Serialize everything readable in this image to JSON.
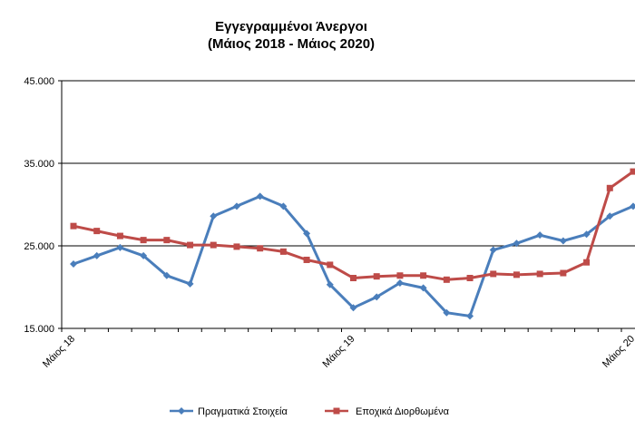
{
  "chart_data": {
    "type": "line",
    "title": "Εγγεγραμμένοι Άνεργοι",
    "subtitle": "(Μάιος 2018 - Μάιος 2020)",
    "xlabel": "",
    "ylabel": "",
    "ylim": [
      15000,
      45000
    ],
    "yticks": [
      "15.000",
      "25.000",
      "35.000",
      "45.000"
    ],
    "yticks_values": [
      15000,
      25000,
      35000,
      45000
    ],
    "x_tick_labels": [
      "Μάιος 18",
      "Μάιος 19",
      "Μάιος 20"
    ],
    "x_tick_positions": [
      0,
      12,
      24
    ],
    "grid": "horizontal",
    "legend_position": "bottom",
    "series": [
      {
        "name": "Πραγματικά Στοιχεία",
        "color": "#4a7ebb",
        "marker": "diamond",
        "values": [
          22800,
          23800,
          24800,
          23800,
          21400,
          20400,
          28600,
          29800,
          31000,
          29800,
          26500,
          20300,
          17500,
          18800,
          20500,
          19900,
          16900,
          16500,
          24500,
          25300,
          26300,
          25600,
          26400,
          28600,
          29800
        ]
      },
      {
        "name": "Εποχικά Διορθωμένα",
        "color": "#be4b48",
        "marker": "square",
        "values": [
          27400,
          26800,
          26200,
          25700,
          25700,
          25100,
          25100,
          24900,
          24700,
          24300,
          23300,
          22700,
          21100,
          21300,
          21400,
          21400,
          20900,
          21100,
          21600,
          21500,
          21600,
          21700,
          23000,
          32000,
          34000
        ]
      }
    ]
  }
}
